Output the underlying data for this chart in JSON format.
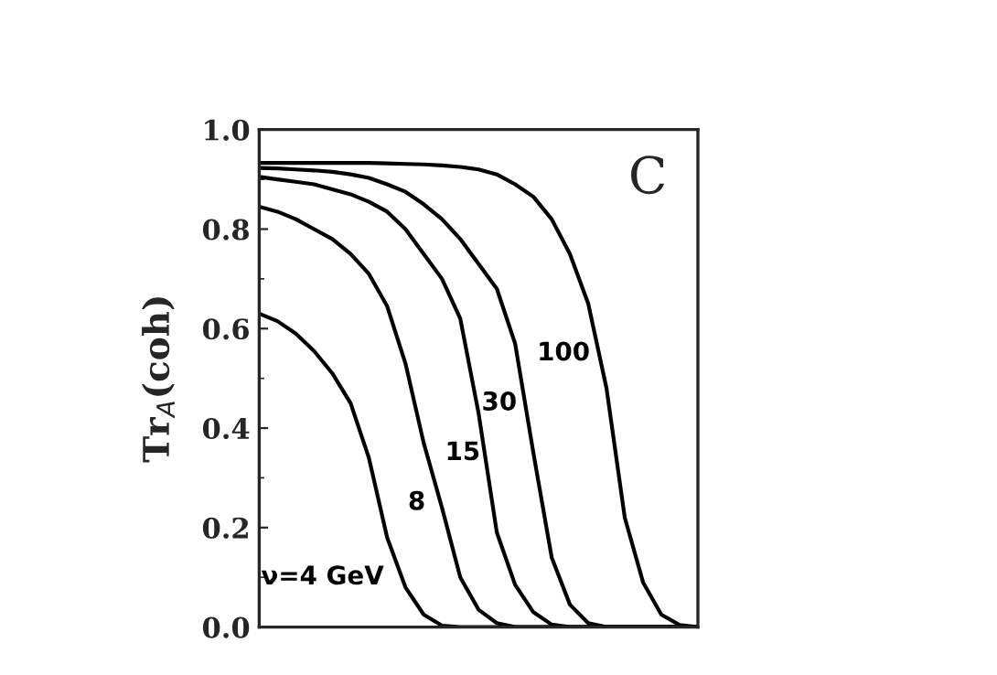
{
  "chart_data": {
    "type": "line",
    "ylabel": "Tr$_{A}$(coh)",
    "categories": [
      null,
      null,
      null,
      null,
      null,
      null,
      null,
      null,
      null,
      null,
      null,
      null,
      null,
      null,
      null,
      null,
      null,
      null,
      null,
      null,
      null,
      null,
      null,
      null,
      null
    ],
    "series": [
      {
        "name": "ν=4 GeV",
        "color": "#000000",
        "values": [
          0.63,
          0.615,
          0.59,
          0.555,
          0.51,
          0.45,
          0.34,
          0.18,
          0.08,
          0.025,
          0.003,
          0,
          0,
          0,
          0,
          0,
          0,
          0,
          0,
          0,
          0,
          0,
          0,
          0,
          0
        ]
      },
      {
        "name": "8",
        "color": "#000000",
        "values": [
          0.845,
          0.835,
          0.82,
          0.8,
          0.78,
          0.75,
          0.71,
          0.645,
          0.53,
          0.37,
          0.24,
          0.1,
          0.035,
          0.008,
          0,
          0,
          0,
          0,
          0,
          0,
          0,
          0,
          0,
          0,
          0
        ]
      },
      {
        "name": "15",
        "color": "#000000",
        "values": [
          0.905,
          0.9,
          0.895,
          0.89,
          0.88,
          0.87,
          0.855,
          0.835,
          0.8,
          0.75,
          0.7,
          0.62,
          0.43,
          0.19,
          0.085,
          0.03,
          0.005,
          0,
          0,
          0,
          0,
          0,
          0,
          0,
          0
        ]
      },
      {
        "name": "30",
        "color": "#000000",
        "values": [
          0.923,
          0.922,
          0.92,
          0.918,
          0.915,
          0.91,
          0.903,
          0.89,
          0.875,
          0.85,
          0.82,
          0.78,
          0.73,
          0.68,
          0.57,
          0.35,
          0.14,
          0.045,
          0.008,
          0,
          0,
          0,
          0,
          0,
          0
        ]
      },
      {
        "name": "100",
        "color": "#000000",
        "values": [
          0.933,
          0.933,
          0.933,
          0.933,
          0.933,
          0.933,
          0.933,
          0.932,
          0.931,
          0.93,
          0.928,
          0.925,
          0.92,
          0.91,
          0.89,
          0.865,
          0.82,
          0.75,
          0.65,
          0.48,
          0.22,
          0.09,
          0.025,
          0.004,
          0
        ]
      }
    ],
    "ylim": [
      0,
      1.0
    ],
    "yticks": [
      {
        "value": 0,
        "label": "0.0"
      },
      {
        "value": 0.2,
        "label": "0.2"
      },
      {
        "value": 0.4,
        "label": "0.4"
      },
      {
        "value": 0.6,
        "label": "0.6"
      },
      {
        "value": 0.8,
        "label": "0.8"
      },
      {
        "value": 1.0,
        "label": "1.0"
      }
    ],
    "annotations": [
      "C"
    ],
    "grid": false,
    "legend": false,
    "marker": "none",
    "line_style": "solid"
  }
}
